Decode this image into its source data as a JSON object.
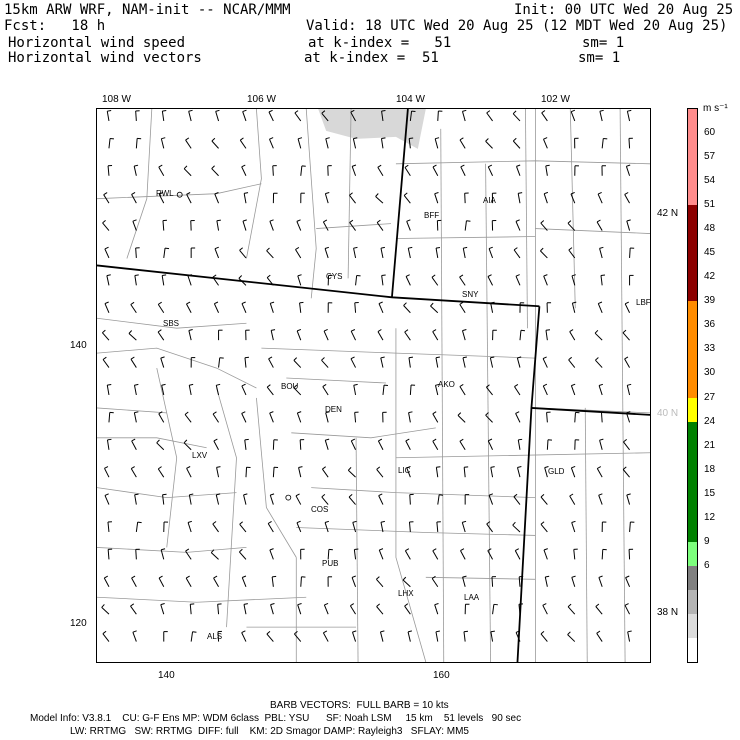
{
  "header": {
    "line1_left": "15km ARW WRF, NAM-init -- NCAR/MMM",
    "line1_right": "Init: 00 UTC Wed 20 Aug 25",
    "line2_left": "Fcst:   18 h",
    "line2_right": "Valid: 18 UTC Wed 20 Aug 25 (12 MDT Wed 20 Aug 25)",
    "field1_name": "Horizontal wind speed",
    "field1_level": "at k-index =   51",
    "field1_sm": "sm= 1",
    "field2_name": "Horizontal wind vectors",
    "field2_level": "at k-index =  51",
    "field2_sm": "sm= 1"
  },
  "lon_labels": [
    "108 W",
    "106 W",
    "104 W",
    "102 W"
  ],
  "lat_labels": [
    "42 N",
    "40 N",
    "38 N"
  ],
  "grid_x_labels": [
    "140",
    "160"
  ],
  "grid_y_labels": [
    "140",
    "120"
  ],
  "cities": [
    "RWL",
    "BFF",
    "AIA",
    "CYS",
    "SNY",
    "LBF",
    "SBS",
    "BOU",
    "AKO",
    "DEN",
    "LXV",
    "LIC",
    "GLD",
    "COS",
    "PUB",
    "LHX",
    "LAA",
    "ALS"
  ],
  "colorbar": {
    "units": "m s⁻¹",
    "ticks": [
      "60",
      "57",
      "54",
      "51",
      "48",
      "45",
      "42",
      "39",
      "36",
      "33",
      "30",
      "27",
      "24",
      "21",
      "18",
      "15",
      "12",
      "9",
      "6"
    ],
    "colors": [
      "#ff8c8c",
      "#ff8c8c",
      "#ff8c8c",
      "#ff8c8c",
      "#8b0000",
      "#8b0000",
      "#8b0000",
      "#8b0000",
      "#ff8c00",
      "#ff8c00",
      "#ff8c00",
      "#ff8c00",
      "#ffff00",
      "#008000",
      "#008000",
      "#008000",
      "#008000",
      "#008000",
      "#7dff7d",
      "#808080",
      "#b4b4b4",
      "#dcdcdc",
      "#ffffff"
    ]
  },
  "footer": {
    "barb_note": "BARB VECTORS:  FULL BARB = 10 kts",
    "model_line1": "Model Info: V3.8.1    CU: G-F Ens MP: WDM 6class  PBL: YSU      SF: Noah LSM     15 km    51 levels   90 sec",
    "model_line2": "LW: RRTMG   SW: RRTMG  DIFF: full    KM: 2D Smagor DAMP: Rayleigh3   SFLAY: MM5"
  }
}
